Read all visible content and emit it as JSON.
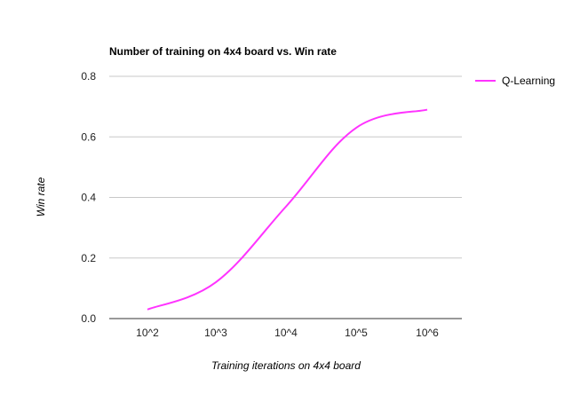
{
  "chart_data": {
    "type": "line",
    "title": "Number of training on 4x4 board vs. Win rate",
    "xlabel": "Training iterations on 4x4 board",
    "ylabel": "Win rate",
    "categories": [
      "10^2",
      "10^3",
      "10^4",
      "10^5",
      "10^6"
    ],
    "y_ticks": [
      "0.0",
      "0.2",
      "0.4",
      "0.6",
      "0.8"
    ],
    "ylim": [
      0,
      0.8
    ],
    "grid": true,
    "legend_position": "top-right",
    "series": [
      {
        "name": "Q-Learning",
        "color": "#ff33ff",
        "values": [
          0.03,
          0.12,
          0.37,
          0.63,
          0.69
        ]
      }
    ]
  }
}
